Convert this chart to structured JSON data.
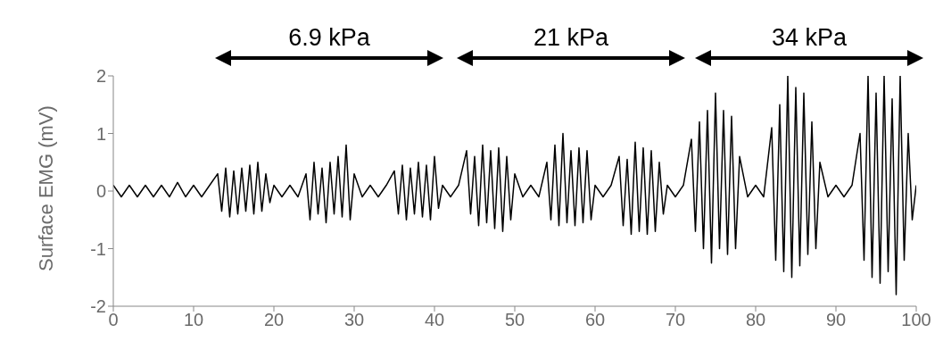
{
  "chart_data": {
    "type": "line",
    "ylabel": "Surface EMG (mV)",
    "x": [
      0,
      1,
      2,
      3,
      4,
      5,
      6,
      7,
      8,
      9,
      10,
      11,
      12,
      13,
      13.5,
      14,
      14.5,
      15,
      15.5,
      16,
      16.5,
      17,
      17.5,
      18,
      18.5,
      19,
      19.5,
      20,
      21,
      22,
      23,
      24,
      24.5,
      25,
      25.5,
      26,
      26.5,
      27,
      27.5,
      28,
      28.5,
      29,
      29.5,
      30,
      31,
      32,
      33,
      34,
      35,
      35.5,
      36,
      36.5,
      37,
      37.5,
      38,
      38.5,
      39,
      39.5,
      40,
      40.5,
      41,
      42,
      43,
      44,
      44.5,
      45,
      45.5,
      46,
      46.5,
      47,
      47.5,
      48,
      48.5,
      49,
      49.5,
      50,
      51,
      52,
      53,
      54,
      54.5,
      55,
      55.5,
      56,
      56.5,
      57,
      57.5,
      58,
      58.5,
      59,
      59.5,
      60,
      61,
      62,
      63,
      63.5,
      64,
      64.5,
      65,
      65.5,
      66,
      66.5,
      67,
      67.5,
      68,
      68.5,
      69,
      70,
      71,
      72,
      72.5,
      73,
      73.5,
      74,
      74.5,
      75,
      75.5,
      76,
      76.5,
      77,
      77.5,
      78,
      79,
      80,
      81,
      82,
      82.5,
      83,
      83.5,
      84,
      84.5,
      85,
      85.5,
      86,
      86.5,
      87,
      87.5,
      88,
      89,
      90,
      91,
      92,
      93,
      93.5,
      94,
      94.5,
      95,
      95.5,
      96,
      96.5,
      97,
      97.5,
      98,
      98.5,
      99,
      99.5,
      100
    ],
    "series": [
      {
        "color": "#000000",
        "values": [
          0.1,
          -0.1,
          0.1,
          -0.1,
          0.1,
          -0.1,
          0.1,
          -0.1,
          0.15,
          -0.1,
          0.1,
          -0.1,
          0.1,
          0.3,
          -0.35,
          0.4,
          -0.45,
          0.35,
          -0.4,
          0.4,
          -0.35,
          0.45,
          -0.4,
          0.5,
          -0.35,
          0.3,
          -0.2,
          0.1,
          -0.1,
          0.1,
          -0.1,
          0.3,
          -0.5,
          0.5,
          -0.4,
          0.4,
          -0.55,
          0.5,
          -0.4,
          0.6,
          -0.45,
          0.8,
          -0.5,
          0.3,
          -0.1,
          0.1,
          -0.1,
          0.1,
          0.35,
          -0.4,
          0.45,
          -0.5,
          0.4,
          -0.4,
          0.5,
          -0.45,
          0.45,
          -0.5,
          0.6,
          -0.3,
          0.1,
          -0.1,
          0.1,
          0.7,
          -0.4,
          0.6,
          -0.6,
          0.8,
          -0.55,
          0.7,
          -0.65,
          0.75,
          -0.7,
          0.6,
          -0.5,
          0.3,
          -0.1,
          0.1,
          -0.1,
          0.5,
          -0.5,
          0.8,
          -0.6,
          1.0,
          -0.55,
          0.7,
          -0.6,
          0.75,
          -0.55,
          0.7,
          -0.5,
          0.1,
          -0.1,
          0.1,
          0.6,
          -0.6,
          0.55,
          -0.75,
          0.85,
          -0.7,
          0.75,
          -0.75,
          0.7,
          -0.7,
          0.5,
          -0.4,
          0.1,
          -0.1,
          0.1,
          0.9,
          -0.7,
          1.2,
          -1.0,
          1.4,
          -1.25,
          1.7,
          -1.0,
          1.4,
          -1.1,
          1.3,
          -1.0,
          0.6,
          -0.1,
          0.1,
          -0.1,
          1.1,
          -1.2,
          1.5,
          -1.4,
          2.0,
          -1.5,
          1.8,
          -1.3,
          1.7,
          -1.1,
          1.2,
          -1.0,
          0.5,
          -0.1,
          0.1,
          -0.1,
          0.1,
          1.0,
          -1.2,
          2.0,
          -1.5,
          1.7,
          -1.6,
          2.0,
          -1.4,
          1.6,
          -1.8,
          2.0,
          -1.2,
          1.0,
          -0.5,
          0.1
        ]
      }
    ],
    "xlim": [
      0,
      100
    ],
    "xticks": [
      0,
      10,
      20,
      30,
      40,
      50,
      60,
      70,
      80,
      90,
      100
    ],
    "ylim": [
      -2,
      2
    ],
    "yticks": [
      -2,
      -1,
      0,
      1,
      2
    ],
    "annotations": [
      "6.9 kPa",
      "21 kPa",
      "34 kPa"
    ],
    "grid": false,
    "legend": false,
    "marker": "none",
    "line_style": "solid"
  }
}
